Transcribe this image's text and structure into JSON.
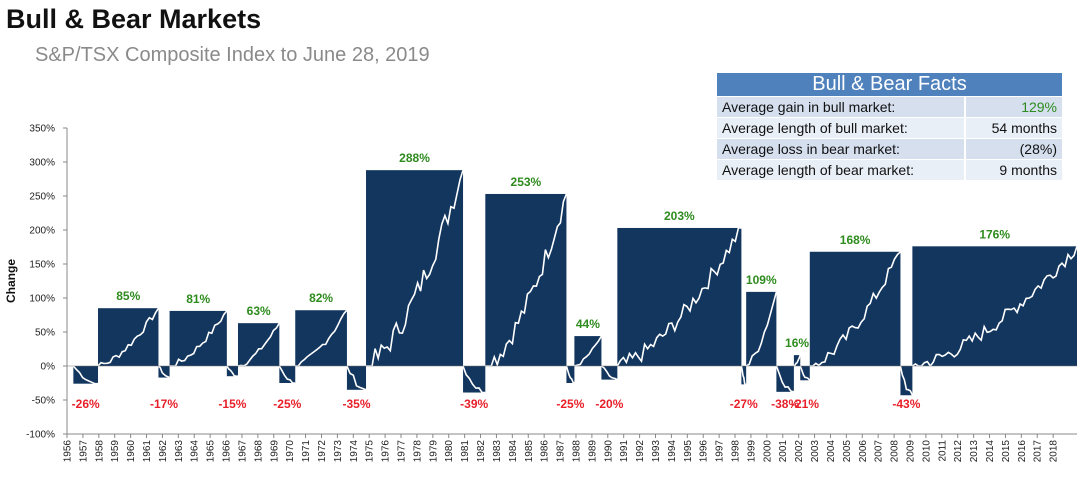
{
  "header": {
    "title": "Bull & Bear Markets",
    "subtitle": "S&P/TSX Composite Index to June 28, 2019"
  },
  "facts": {
    "title": "Bull & Bear Facts",
    "rows": [
      {
        "label": "Average gain in bull market:",
        "value": "129%",
        "highlight": true
      },
      {
        "label": "Average length of bull market:",
        "value": "54 months",
        "highlight": false
      },
      {
        "label": "Average loss in bear market:",
        "value": "(28%)",
        "highlight": false
      },
      {
        "label": "Average length of bear market:",
        "value": "9 months",
        "highlight": false
      }
    ]
  },
  "colors": {
    "bull_fill": "#13365f",
    "line": "#ffffff",
    "bull_label": "#2e8b1e",
    "bear_label": "#e8202a",
    "axis_text": "#222222"
  },
  "chart_data": {
    "type": "area",
    "ylabel": "Change",
    "ylim": [
      -100,
      350
    ],
    "y_ticks": [
      "350%",
      "300%",
      "250%",
      "200%",
      "150%",
      "100%",
      "50%",
      "0%",
      "-50%",
      "-100%"
    ],
    "x_ticks": [
      "1956",
      "1957",
      "1958",
      "1959",
      "1960",
      "1961",
      "1962",
      "1963",
      "1964",
      "1965",
      "1966",
      "1967",
      "1968",
      "1969",
      "1970",
      "1971",
      "1972",
      "1973",
      "1974",
      "1975",
      "1976",
      "1977",
      "1978",
      "1979",
      "1980",
      "1981",
      "1982",
      "1983",
      "1984",
      "1985",
      "1986",
      "1987",
      "1988",
      "1989",
      "1990",
      "1991",
      "1992",
      "1993",
      "1994",
      "1995",
      "1996",
      "1997",
      "1998",
      "1999",
      "2000",
      "2001",
      "2002",
      "2003",
      "2004",
      "2005",
      "2006",
      "2007",
      "2008",
      "2009",
      "2010",
      "2011",
      "2012",
      "2013",
      "2014",
      "2015",
      "2016",
      "2017",
      "2018"
    ],
    "xlim": [
      1956,
      2019.5
    ],
    "markets": [
      {
        "type": "bear",
        "start": 1956.4,
        "end": 1957.95,
        "change": -26,
        "label": "-26%"
      },
      {
        "type": "bull",
        "start": 1957.95,
        "end": 1961.75,
        "change": 85,
        "label": "85%"
      },
      {
        "type": "bear",
        "start": 1961.75,
        "end": 1962.45,
        "change": -17,
        "label": "-17%"
      },
      {
        "type": "bull",
        "start": 1962.45,
        "end": 1966.05,
        "change": 81,
        "label": "81%"
      },
      {
        "type": "bear",
        "start": 1966.05,
        "end": 1966.75,
        "change": -15,
        "label": "-15%"
      },
      {
        "type": "bull",
        "start": 1966.75,
        "end": 1969.35,
        "change": 63,
        "label": "63%"
      },
      {
        "type": "bear",
        "start": 1969.35,
        "end": 1970.35,
        "change": -25,
        "label": "-25%"
      },
      {
        "type": "bull",
        "start": 1970.35,
        "end": 1973.6,
        "change": 82,
        "label": "82%"
      },
      {
        "type": "bear",
        "start": 1973.6,
        "end": 1974.8,
        "change": -35,
        "label": "-35%"
      },
      {
        "type": "bull",
        "start": 1974.8,
        "end": 1980.9,
        "change": 288,
        "label": "288%"
      },
      {
        "type": "bear",
        "start": 1980.9,
        "end": 1982.3,
        "change": -39,
        "label": "-39%"
      },
      {
        "type": "bull",
        "start": 1982.3,
        "end": 1987.4,
        "change": 253,
        "label": "253%"
      },
      {
        "type": "bear",
        "start": 1987.4,
        "end": 1987.9,
        "change": -25,
        "label": "-25%"
      },
      {
        "type": "bull",
        "start": 1987.9,
        "end": 1989.6,
        "change": 44,
        "label": "44%"
      },
      {
        "type": "bear",
        "start": 1989.6,
        "end": 1990.6,
        "change": -20,
        "label": "-20%"
      },
      {
        "type": "bull",
        "start": 1990.6,
        "end": 1998.4,
        "change": 203,
        "label": "203%"
      },
      {
        "type": "bear",
        "start": 1998.4,
        "end": 1998.7,
        "change": -27,
        "label": "-27%"
      },
      {
        "type": "bull",
        "start": 1998.7,
        "end": 2000.6,
        "change": 109,
        "label": "109%"
      },
      {
        "type": "bear",
        "start": 2000.6,
        "end": 2001.7,
        "change": -38,
        "label": "-38%"
      },
      {
        "type": "bull",
        "start": 2001.7,
        "end": 2002.1,
        "change": 16,
        "label": "16%"
      },
      {
        "type": "bear",
        "start": 2002.1,
        "end": 2002.7,
        "change": -21,
        "label": "-21%"
      },
      {
        "type": "bull",
        "start": 2002.7,
        "end": 2008.4,
        "change": 168,
        "label": "168%"
      },
      {
        "type": "bear",
        "start": 2008.4,
        "end": 2009.15,
        "change": -43,
        "label": "-43%"
      },
      {
        "type": "bull",
        "start": 2009.15,
        "end": 2019.5,
        "change": 176,
        "label": "176%"
      }
    ]
  }
}
